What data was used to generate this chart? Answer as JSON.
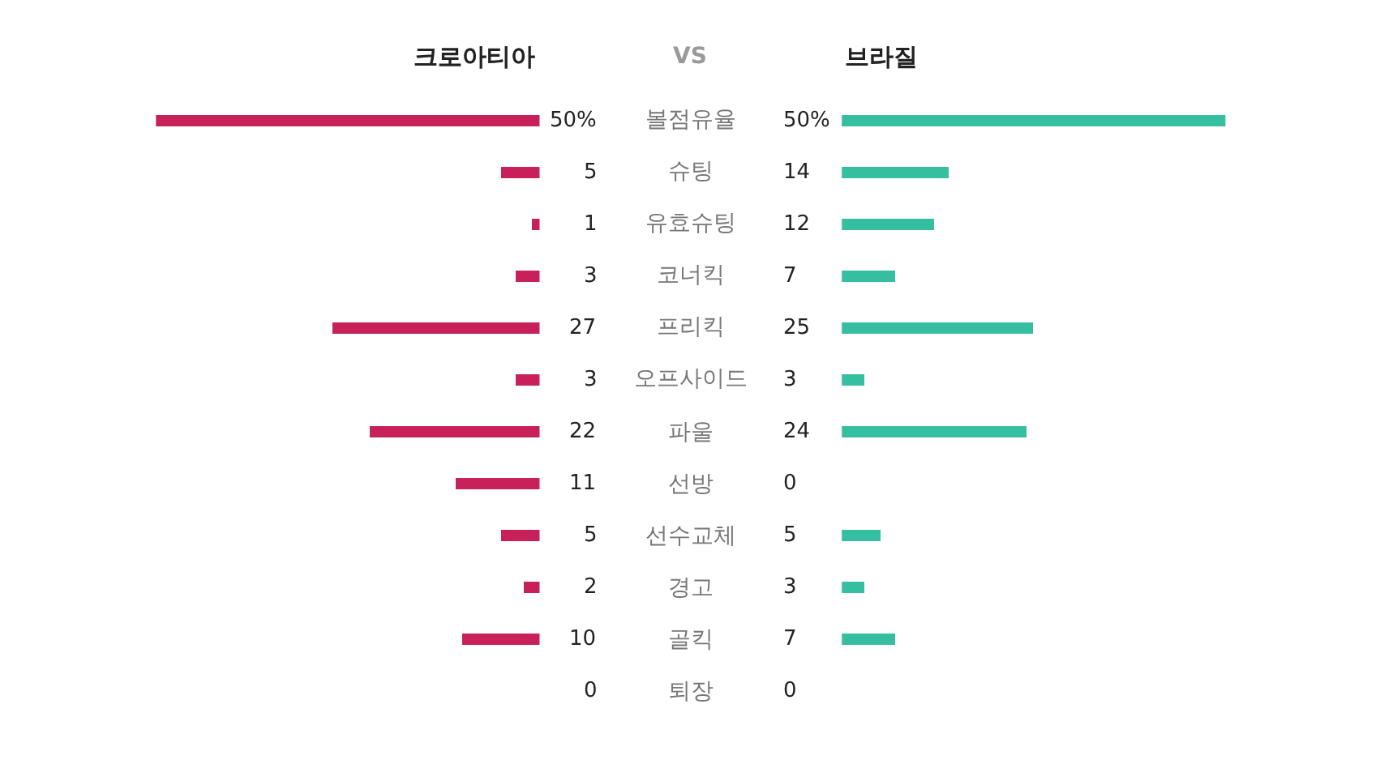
{
  "chart_data": [
    {
      "type": "bar",
      "orientation": "horizontal",
      "annotations": [
        "VS"
      ],
      "categories": [
        "볼점유율",
        "슈팅",
        "유효슈팅",
        "코너킥",
        "프리킥",
        "오프사이드",
        "파울",
        "선방",
        "선수교체",
        "경고",
        "골킥",
        "퇴장"
      ],
      "series": [
        {
          "name": "크로아티아",
          "color": "#c8215a",
          "values": [
            50,
            5,
            1,
            3,
            27,
            3,
            22,
            11,
            5,
            2,
            10,
            0
          ],
          "value_labels": [
            "50%",
            "5",
            "1",
            "3",
            "27",
            "3",
            "22",
            "11",
            "5",
            "2",
            "10",
            "0"
          ]
        }
      ],
      "xlim": [
        50,
        0
      ],
      "tick_labels": false
    },
    {
      "type": "bar",
      "orientation": "horizontal",
      "categories": [
        null,
        null,
        null,
        null,
        null,
        null,
        null,
        null,
        null,
        null,
        null,
        null
      ],
      "series": [
        {
          "name": "브라질",
          "color": "#35bfa0",
          "values": [
            50,
            14,
            12,
            7,
            25,
            3,
            24,
            0,
            5,
            3,
            7,
            0
          ],
          "value_labels": [
            "50%",
            "14",
            "12",
            "7",
            "25",
            "3",
            "24",
            "0",
            "5",
            "3",
            "7",
            "0"
          ]
        }
      ],
      "xlim": [
        0,
        50
      ],
      "tick_labels": false
    }
  ]
}
